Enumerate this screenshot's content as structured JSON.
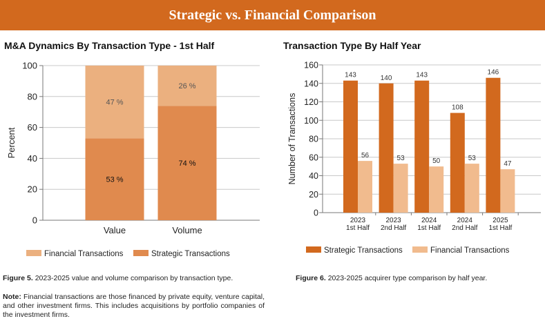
{
  "header": {
    "title": "Strategic vs. Financial Comparison"
  },
  "colors": {
    "banner": "#d2691e",
    "strategic": "#e08a4e",
    "financial": "#ebb07f",
    "strategic_dark": "#d2691e",
    "financial_light": "#f1bb8e"
  },
  "captions": {
    "fig5_label": "Figure 5.",
    "fig5_text": "2023-2025 value and volume comparison by transaction type.",
    "fig6_label": "Figure 6.",
    "fig6_text": "2023-2025 acquirer type comparison by half year.",
    "note_label": "Note:",
    "note_text": "Financial transactions are those financed by private equity, venture capital, and other investment firms. This includes acquisitions by portfolio companies of the investment firms."
  },
  "chart_data": [
    {
      "type": "bar",
      "stacked": true,
      "title": "M&A Dynamics By Transaction Type - 1st Half",
      "ylabel": "Percent",
      "xlabel": "",
      "ylim": [
        0,
        100
      ],
      "yticks": [
        "0",
        "20",
        "40",
        "60",
        "80",
        "100"
      ],
      "categories": [
        "Value",
        "Volume"
      ],
      "series": [
        {
          "name": "Strategic Transactions",
          "values": [
            53,
            74
          ],
          "labels": [
            "53 %",
            "74 %"
          ]
        },
        {
          "name": "Financial Transactions",
          "values": [
            47,
            26
          ],
          "labels": [
            "47 %",
            "26 %"
          ]
        }
      ],
      "legend": [
        "Financial Transactions",
        "Strategic Transactions"
      ],
      "legend_position": "bottom",
      "grid": true
    },
    {
      "type": "bar",
      "title": "Transaction Type By Half Year",
      "ylabel": "Number of Transactions",
      "xlabel": "",
      "ylim": [
        0,
        160
      ],
      "yticks": [
        "0",
        "20",
        "40",
        "60",
        "80",
        "100",
        "120",
        "140",
        "160"
      ],
      "categories": [
        [
          "2023",
          "1st Half"
        ],
        [
          "2023",
          "2nd Half"
        ],
        [
          "2024",
          "1st Half"
        ],
        [
          "2024",
          "2nd Half"
        ],
        [
          "2025",
          "1st Half"
        ]
      ],
      "series": [
        {
          "name": "Strategic Transactions",
          "values": [
            143,
            140,
            143,
            108,
            146
          ]
        },
        {
          "name": "Financial Transactions",
          "values": [
            56,
            53,
            50,
            53,
            47
          ]
        }
      ],
      "legend_position": "bottom",
      "grid": true
    }
  ]
}
